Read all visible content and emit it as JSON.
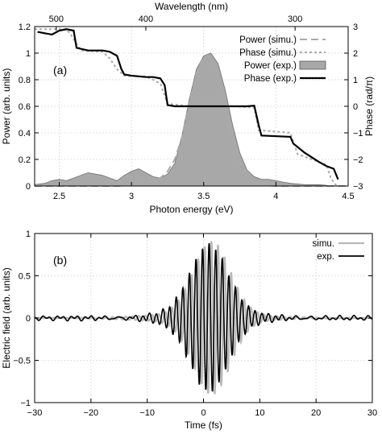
{
  "chart_data": [
    {
      "panel": "(a)",
      "type": "line",
      "xlabel": "Photon energy (eV)",
      "xlabel_top": "Wavelength (nm)",
      "ylabel_left": "Power (arb. units)",
      "ylabel_right": "Phase (rad/π)",
      "xlim": [
        2.33,
        4.5
      ],
      "ylim_left": [
        0,
        1.2
      ],
      "ylim_right": [
        -3,
        3
      ],
      "x_ticks": [
        2.5,
        3,
        3.5,
        4,
        4.5
      ],
      "x_tick_labels": [
        "2.5",
        "3",
        "3.5",
        "4",
        "4.5"
      ],
      "y_left_ticks": [
        0,
        0.2,
        0.4,
        0.6,
        0.8,
        1,
        1.2
      ],
      "y_left_tick_labels": [
        "0",
        "0.2",
        "0.4",
        "0.6",
        "0.8",
        "1",
        "1.2"
      ],
      "y_right_ticks": [
        -3,
        -2,
        -1,
        0,
        1,
        2,
        3
      ],
      "y_right_tick_labels": [
        "−3",
        "−2",
        "−1",
        "0",
        "1",
        "2",
        "3"
      ],
      "top_ticks_nm": [
        500,
        400,
        300
      ],
      "top_tick_labels": [
        "500",
        "400",
        "300"
      ],
      "grid": true,
      "legend_placement": "top-right",
      "series": [
        {
          "name": "Power (simu.)",
          "style": "dashed",
          "color": "#aaaaaa",
          "axis": "left",
          "x": [
            2.33,
            2.5,
            2.6,
            2.7,
            2.8,
            2.9,
            3.0,
            3.1,
            3.2,
            3.25,
            3.3,
            3.35,
            3.4,
            3.45,
            3.5,
            3.55,
            3.6,
            3.65,
            3.7,
            3.75,
            3.8,
            3.85,
            3.9,
            4.0,
            4.2,
            4.5
          ],
          "y": [
            0,
            0,
            0,
            0,
            0,
            0,
            0.005,
            0.02,
            0.06,
            0.11,
            0.2,
            0.37,
            0.62,
            0.85,
            0.98,
            0.97,
            0.84,
            0.62,
            0.38,
            0.18,
            0.07,
            0.02,
            0.005,
            0,
            0,
            0
          ]
        },
        {
          "name": "Phase (simu.)",
          "style": "dotted",
          "color": "#aaaaaa",
          "axis": "right",
          "x": [
            2.33,
            2.55,
            2.58,
            2.65,
            2.8,
            2.85,
            2.9,
            2.95,
            3.1,
            3.15,
            3.2,
            3.25,
            3.4,
            3.5,
            3.7,
            3.85,
            3.88,
            4.1,
            4.15,
            4.3,
            4.35,
            4.38,
            4.42
          ],
          "y": [
            2.9,
            2.9,
            2.7,
            2.1,
            2.05,
            1.8,
            1.4,
            1.15,
            1.12,
            1.0,
            0.85,
            0.1,
            0,
            0,
            0,
            -0.05,
            -0.9,
            -1.0,
            -1.8,
            -2.1,
            -2.2,
            -2.7,
            -3.0
          ]
        },
        {
          "name": "Power (exp.)",
          "style": "filled",
          "color": "#a8a8a8",
          "axis": "left",
          "x": [
            2.33,
            2.4,
            2.45,
            2.5,
            2.55,
            2.6,
            2.65,
            2.7,
            2.75,
            2.8,
            2.85,
            2.9,
            2.95,
            3.0,
            3.05,
            3.1,
            3.15,
            3.2,
            3.25,
            3.3,
            3.35,
            3.4,
            3.45,
            3.5,
            3.55,
            3.6,
            3.65,
            3.7,
            3.75,
            3.8,
            3.85,
            3.9,
            3.95,
            4.0,
            4.05,
            4.1,
            4.2,
            4.3,
            4.4,
            4.45
          ],
          "y": [
            0.01,
            0.02,
            0.04,
            0.05,
            0.04,
            0.06,
            0.08,
            0.1,
            0.09,
            0.08,
            0.06,
            0.04,
            0.08,
            0.11,
            0.13,
            0.1,
            0.07,
            0.06,
            0.09,
            0.17,
            0.38,
            0.65,
            0.88,
            0.98,
            1.0,
            0.92,
            0.72,
            0.46,
            0.25,
            0.12,
            0.07,
            0.05,
            0.05,
            0.04,
            0.03,
            0.02,
            0.01,
            0.01,
            0,
            0
          ]
        },
        {
          "name": "Phase (exp.)",
          "style": "solid",
          "color": "#000000",
          "axis": "right",
          "x": [
            2.35,
            2.4,
            2.45,
            2.5,
            2.55,
            2.6,
            2.62,
            2.7,
            2.75,
            2.8,
            2.85,
            2.9,
            2.93,
            2.95,
            3.0,
            3.1,
            3.15,
            3.2,
            3.23,
            3.25,
            3.3,
            3.5,
            3.7,
            3.8,
            3.85,
            3.88,
            3.9,
            4.1,
            4.12,
            4.2,
            4.3,
            4.35,
            4.4,
            4.43
          ],
          "y": [
            2.8,
            2.75,
            2.7,
            2.85,
            2.9,
            2.85,
            2.2,
            2.1,
            2.1,
            2.1,
            2.05,
            1.9,
            1.4,
            1.2,
            1.15,
            1.1,
            1.1,
            1.05,
            0.8,
            0.05,
            0,
            0,
            0,
            0,
            0.02,
            -0.7,
            -1.1,
            -1.15,
            -1.4,
            -1.75,
            -2.1,
            -2.25,
            -2.35,
            -2.75
          ]
        }
      ]
    },
    {
      "panel": "(b)",
      "type": "line",
      "xlabel": "Time (fs)",
      "ylabel": "Electric field (arb. units)",
      "xlim": [
        -30,
        30
      ],
      "ylim": [
        -1,
        1
      ],
      "x_ticks": [
        -30,
        -20,
        -10,
        0,
        10,
        20,
        30
      ],
      "x_tick_labels": [
        "−30",
        "−20",
        "−10",
        "0",
        "10",
        "20",
        "30"
      ],
      "y_ticks": [
        -1,
        -0.5,
        0,
        0.5,
        1
      ],
      "y_tick_labels": [
        "−1",
        "−0.5",
        "0",
        "0.5",
        "1"
      ],
      "grid": true,
      "legend_placement": "top-right",
      "series": [
        {
          "name": "simu.",
          "color": "#b8b8b8",
          "amplitude": 0.86,
          "center_fs": 1.5,
          "width_fs": 4.6,
          "period_fs": 1.17,
          "phase": 0.5,
          "noise": 0.0
        },
        {
          "name": "exp.",
          "color": "#000000",
          "amplitude": 0.84,
          "center_fs": 1.0,
          "width_fs": 4.7,
          "period_fs": 1.17,
          "phase": 0.0,
          "noise": 0.03
        }
      ]
    }
  ]
}
